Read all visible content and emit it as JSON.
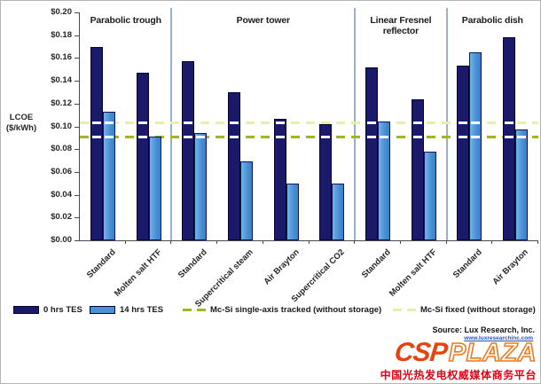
{
  "chart_data": {
    "type": "bar",
    "ylabel_lines": [
      "LCOE",
      "($/kWh)"
    ],
    "ylim": [
      0,
      0.2
    ],
    "y_tick_labels": [
      "$0.20",
      "$0.18",
      "$0.16",
      "$0.14",
      "$0.12",
      "$0.10",
      "$0.08",
      "$0.06",
      "$0.04",
      "$0.02",
      "$0.00"
    ],
    "series": [
      {
        "name": "0 hrs TES",
        "color": "#1b1a6a"
      },
      {
        "name": "14 hrs TES",
        "color": "#4a92d8"
      }
    ],
    "groups": [
      {
        "label": "Parabolic trough",
        "categories": [
          {
            "label": "Standard",
            "values": [
              0.17,
              0.113
            ]
          },
          {
            "label": "Molten salt HTF",
            "values": [
              0.147,
              0.091
            ]
          }
        ]
      },
      {
        "label": "Power tower",
        "categories": [
          {
            "label": "Standard",
            "values": [
              0.157,
              0.094
            ]
          },
          {
            "label": "Supercritical steam",
            "values": [
              0.13,
              0.069
            ]
          },
          {
            "label": "Air Brayton",
            "values": [
              0.107,
              0.05
            ]
          },
          {
            "label": "Supercritical CO2",
            "values": [
              0.102,
              0.05
            ]
          }
        ]
      },
      {
        "label": "Linear Fresnel reflector",
        "categories": [
          {
            "label": "Standard",
            "values": [
              0.152,
              0.104
            ]
          },
          {
            "label": "Molten salt HTF",
            "values": [
              0.124,
              0.078
            ]
          }
        ]
      },
      {
        "label": "Parabolic dish",
        "categories": [
          {
            "label": "Standard",
            "values": [
              0.153,
              0.165
            ]
          },
          {
            "label": "Air Brayton",
            "values": [
              0.178,
              0.097
            ]
          }
        ]
      }
    ],
    "reference_lines": [
      {
        "name": "Mc-Si single-axis tracked (without storage)",
        "value": 0.09,
        "color": "#a6b41e"
      },
      {
        "name": "Mc-Si fixed (without storage)",
        "value": 0.103,
        "color": "#e9efa8"
      }
    ],
    "legend_position": "bottom",
    "grid": false
  },
  "legend": {
    "items": [
      {
        "label": "0 hrs TES",
        "type": "solid",
        "color": "#1b1a6a",
        "x": 14
      },
      {
        "label": "14 hrs TES",
        "type": "solid",
        "color": "#4a92d8",
        "x": 100
      },
      {
        "label": "Mc-Si single-axis tracked (without storage)",
        "type": "dash",
        "color": "#a6b41e",
        "x": 205
      },
      {
        "label": "Mc-Si fixed (without storage)",
        "type": "dash",
        "color": "#e9efa8",
        "x": 442
      }
    ]
  },
  "source": {
    "text": "Source: Lux Research, Inc.",
    "website": "www.luxresearchinc.com"
  },
  "logo": {
    "csp": "CSP",
    "plaza": "PLAZA",
    "tagline": "中国光热发电权威媒体商务平台"
  },
  "colors": {
    "bar_dark_navy": "#1b1a6a",
    "bar_light_blue": "#4a92d8",
    "ref_tracked_olive": "#a6b41e",
    "ref_fixed_pale_yellow": "#e9efa8",
    "group_separator": "#97b1d4",
    "axis": "#4a4a4a",
    "logo_orange": "#e8430e",
    "logo_red": "#e60012"
  }
}
